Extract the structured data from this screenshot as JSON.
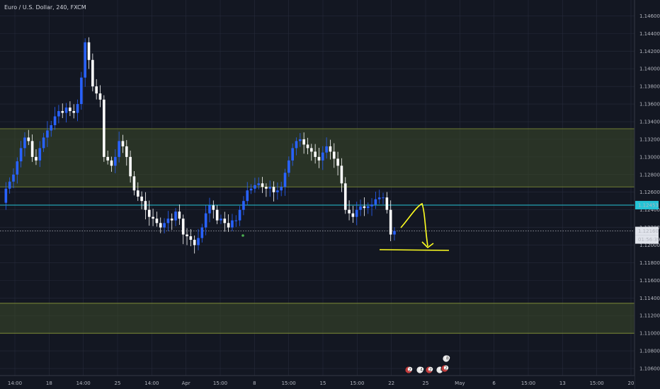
{
  "title": "Euro / U.S. Dollar, 240, FXCM",
  "colors": {
    "background": "#131722",
    "grid": "#262b3b",
    "candle_up": "#2962ff",
    "candle_down": "#ffffff",
    "zone_fill": "#3c4a2a",
    "zone_border": "#8b9a3a",
    "cyan_line": "#24c4d6",
    "annotation": "#ffff20",
    "dot": "#4caf50"
  },
  "price_labels": {
    "cyan_level": "1.12453",
    "current_price": "1.12160",
    "countdown": "01:56:39"
  },
  "event_badges": [
    "2",
    "4",
    "2",
    "4",
    "2",
    "8"
  ],
  "chart_data": {
    "type": "candlestick",
    "symbol": "Euro / U.S. Dollar",
    "interval": "240",
    "source": "FXCM",
    "y_ticks": [
      "1.14600",
      "1.14400",
      "1.14200",
      "1.14000",
      "1.13800",
      "1.13600",
      "1.13400",
      "1.13200",
      "1.13000",
      "1.12800",
      "1.12600",
      "1.12400",
      "1.12200",
      "1.12000",
      "1.11800",
      "1.11600",
      "1.11400",
      "1.11200",
      "1.11000",
      "1.10800",
      "1.10600"
    ],
    "ylim": [
      1.1052,
      1.1478
    ],
    "x_ticks": [
      "14:00",
      "18",
      "14:00",
      "25",
      "14:00",
      "Apr",
      "15:00",
      "8",
      "15:00",
      "15",
      "15:00",
      "22",
      "25",
      "May",
      "6",
      "15:00",
      "13",
      "15:00",
      "20"
    ],
    "support_resistance_zones": [
      {
        "top": 1.1332,
        "bottom": 1.1266
      },
      {
        "top": 1.1134,
        "bottom": 1.11
      }
    ],
    "horizontal_lines": [
      {
        "price": 1.12453,
        "style": "solid"
      },
      {
        "price": 1.1216,
        "style": "dotted"
      }
    ],
    "close_path": [
      1.1248,
      1.1264,
      1.1272,
      1.128,
      1.1295,
      1.131,
      1.1322,
      1.1318,
      1.13,
      1.1296,
      1.131,
      1.1322,
      1.133,
      1.1336,
      1.1346,
      1.1352,
      1.135,
      1.1356,
      1.1352,
      1.135,
      1.136,
      1.139,
      1.143,
      1.141,
      1.138,
      1.1372,
      1.1365,
      1.13,
      1.1296,
      1.129,
      1.13,
      1.1318,
      1.1312,
      1.13,
      1.1278,
      1.1262,
      1.1255,
      1.125,
      1.124,
      1.1232,
      1.123,
      1.1225,
      1.122,
      1.1225,
      1.123,
      1.1228,
      1.1238,
      1.123,
      1.1212,
      1.121,
      1.1206,
      1.12,
      1.1208,
      1.122,
      1.1236,
      1.1245,
      1.124,
      1.1228,
      1.123,
      1.1225,
      1.122,
      1.1228,
      1.1228,
      1.124,
      1.125,
      1.1262,
      1.1264,
      1.1268,
      1.127,
      1.1266,
      1.1264,
      1.1266,
      1.126,
      1.1262,
      1.1266,
      1.1282,
      1.1296,
      1.131,
      1.1318,
      1.132,
      1.1314,
      1.131,
      1.1306,
      1.13,
      1.1296,
      1.1305,
      1.1312,
      1.1306,
      1.1298,
      1.129,
      1.127,
      1.124,
      1.1236,
      1.1232,
      1.124,
      1.1244,
      1.1242,
      1.1244,
      1.1246,
      1.1252,
      1.1254,
      1.1254,
      1.124,
      1.1212,
      1.1216
    ],
    "annotation": {
      "type": "hand-drawn",
      "polyline": [
        [
          1.1216,
          0
        ],
        [
          1.1245,
          1
        ],
        [
          1.1205,
          2
        ]
      ],
      "baseline": 1.1202
    }
  }
}
